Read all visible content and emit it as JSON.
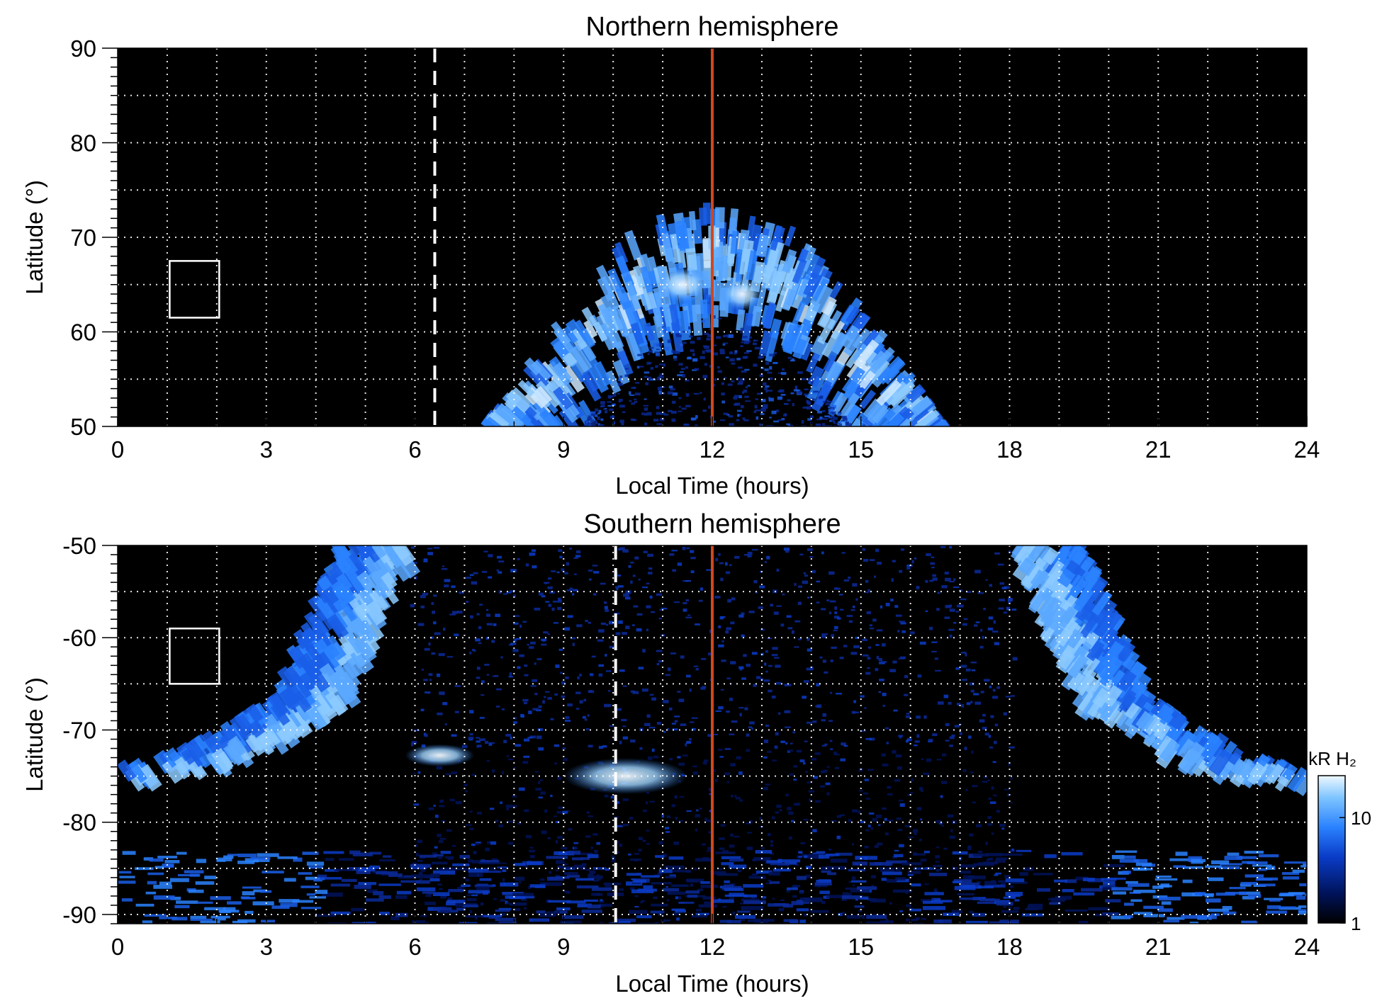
{
  "chart_data": [
    {
      "type": "heatmap",
      "title": "Northern hemisphere",
      "xlabel": "Local Time (hours)",
      "ylabel": "Latitude (°)",
      "xlim": [
        0,
        24
      ],
      "ylim": [
        50,
        90
      ],
      "xticks": [
        0,
        3,
        6,
        9,
        12,
        15,
        18,
        21,
        24
      ],
      "xtick_labels": [
        "0",
        "3",
        "6",
        "9",
        "12",
        "15",
        "18",
        "21",
        "24"
      ],
      "yticks": [
        50,
        60,
        70,
        80,
        90
      ],
      "ytick_labels": [
        "50",
        "60",
        "70",
        "80",
        "90"
      ],
      "grid": true,
      "background": "#000000",
      "reference_lines": [
        {
          "style": "solid",
          "color": "#d2461e",
          "x": 12
        },
        {
          "style": "dashed",
          "color": "#ffffff",
          "x": 6.4
        }
      ],
      "box": {
        "x": [
          1.05,
          2.05
        ],
        "y": [
          61.5,
          67.5
        ]
      },
      "auroral_oval": {
        "center_lt": 12,
        "outer_edge": [
          [
            7.5,
            50
          ],
          [
            9,
            61
          ],
          [
            10.5,
            71
          ],
          [
            12,
            73
          ],
          [
            13.5,
            71
          ],
          [
            15,
            62
          ],
          [
            16.6,
            50
          ]
        ],
        "inner_edge": [
          [
            9.3,
            50
          ],
          [
            10.5,
            58
          ],
          [
            12,
            62
          ],
          [
            13.5,
            58
          ],
          [
            14.8,
            50
          ]
        ]
      }
    },
    {
      "type": "heatmap",
      "title": "Southern hemisphere",
      "xlabel": "Local Time (hours)",
      "ylabel": "Latitude (°)",
      "xlim": [
        0,
        24
      ],
      "ylim": [
        -91,
        -50
      ],
      "xticks": [
        0,
        3,
        6,
        9,
        12,
        15,
        18,
        21,
        24
      ],
      "xtick_labels": [
        "0",
        "3",
        "6",
        "9",
        "12",
        "15",
        "18",
        "21",
        "24"
      ],
      "yticks": [
        -90,
        -80,
        -70,
        -60,
        -50
      ],
      "ytick_labels": [
        "-90",
        "-80",
        "-70",
        "-60",
        "-50"
      ],
      "grid": true,
      "background": "#000000",
      "reference_lines": [
        {
          "style": "solid",
          "color": "#d2461e",
          "x": 12
        },
        {
          "style": "dashed",
          "color": "#ffffff",
          "x": 10.05
        }
      ],
      "box": {
        "x": [
          1.05,
          2.05
        ],
        "y": [
          -65,
          -59
        ]
      },
      "auroral_oval": {
        "left_band": [
          [
            0,
            -76
          ],
          [
            2.5,
            -73
          ],
          [
            4.5,
            -67
          ],
          [
            5.9,
            -50
          ]
        ],
        "right_band": [
          [
            18.1,
            -50
          ],
          [
            19.5,
            -67
          ],
          [
            21.5,
            -73
          ],
          [
            24,
            -76
          ]
        ],
        "bright_patches": [
          {
            "lt": [
              9.0,
              11.5
            ],
            "lat": [
              -76.5,
              -73.5
            ]
          },
          {
            "lt": [
              5.8,
              7.2
            ],
            "lat": [
              -73.5,
              -72
            ]
          }
        ]
      }
    }
  ],
  "colorbar": {
    "label": "kR H₂",
    "ticks": [
      1,
      10
    ],
    "tick_labels": [
      "1",
      "10"
    ],
    "scale": "log",
    "range": [
      1,
      25
    ],
    "colors": [
      "#000000",
      "#00135a",
      "#0a3cc8",
      "#2a82ff",
      "#7ec4ff",
      "#eef8ff"
    ]
  }
}
